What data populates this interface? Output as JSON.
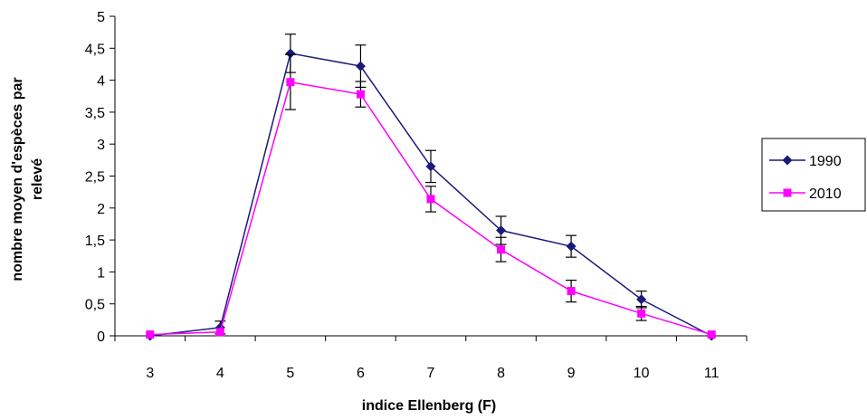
{
  "chart_data": {
    "type": "line",
    "xlabel": "indice Ellenberg (F)",
    "ylabel_lines": [
      "nombre moyen d'espèces par",
      "relevé"
    ],
    "categories": [
      "3",
      "4",
      "5",
      "6",
      "7",
      "8",
      "9",
      "10",
      "11"
    ],
    "ylim": [
      0,
      5
    ],
    "y_ticks": [
      "0",
      "0,5",
      "1",
      "1,5",
      "2",
      "2,5",
      "3",
      "3,5",
      "4",
      "4,5",
      "5"
    ],
    "grid": false,
    "legend_position": "right",
    "series": [
      {
        "name": "1990",
        "color": "#1a1a7a",
        "marker": "diamond",
        "values": [
          0,
          0.13,
          4.42,
          4.22,
          2.65,
          1.65,
          1.4,
          0.57,
          0
        ],
        "errors": [
          0,
          0.1,
          0.3,
          0.33,
          0.25,
          0.22,
          0.17,
          0.13,
          0
        ]
      },
      {
        "name": "2010",
        "color": "#ff00ff",
        "marker": "square",
        "values": [
          0.02,
          0.06,
          3.97,
          3.78,
          2.14,
          1.35,
          0.7,
          0.35,
          0.02
        ],
        "errors": [
          0,
          0,
          0.43,
          0.2,
          0.2,
          0.19,
          0.17,
          0.11,
          0
        ]
      }
    ]
  }
}
